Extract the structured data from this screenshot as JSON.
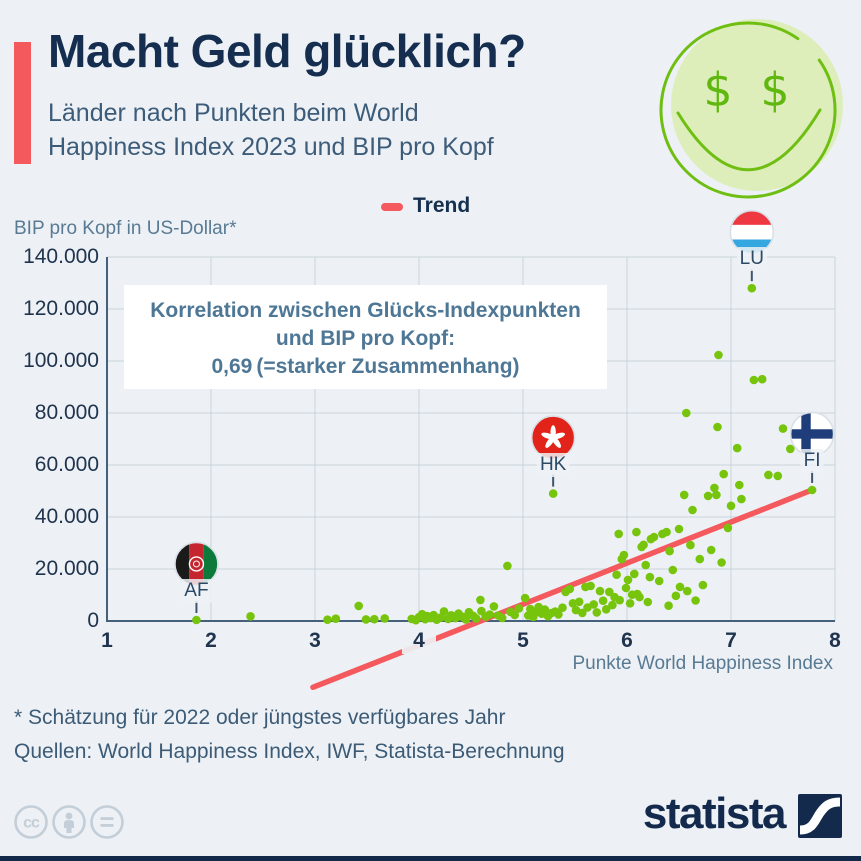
{
  "header": {
    "title": "Macht Geld glücklich?",
    "subtitle_line1": "Länder nach Punkten beim World",
    "subtitle_line2": "Happiness Index 2023 und BIP pro Kopf"
  },
  "legend": {
    "trend_label": "Trend"
  },
  "smiley": {
    "eye_symbol": "$"
  },
  "annotation": {
    "line1": "Korrelation zwischen Glücks-Indexpunkten",
    "line2": "und BIP pro Kopf:",
    "value": "0,69",
    "suffix": "(=starker Zusammenhang)"
  },
  "footer": {
    "note": "* Schätzung für 2022 oder jüngstes verfügbares Jahr",
    "sources": "Quellen: World Happiness Index, IWF, Statista-Berechnung"
  },
  "branding": {
    "logo_text": "statista",
    "cc_glyph": "cc"
  },
  "chart_data": {
    "type": "scatter",
    "title": "Macht Geld glücklich?",
    "xlabel": "Punkte World Happiness Index",
    "ylabel": "BIP pro Kopf in US-Dollar*",
    "xlim": [
      1,
      8
    ],
    "ylim": [
      0,
      140000
    ],
    "grid": true,
    "legend_position": "top-center",
    "x_ticks": [
      1,
      2,
      3,
      4,
      5,
      6,
      7,
      8
    ],
    "x_tick_labels": [
      "1",
      "2",
      "3",
      "4",
      "5",
      "6",
      "7",
      "8"
    ],
    "y_ticks": [
      0,
      20000,
      40000,
      60000,
      80000,
      100000,
      120000,
      140000
    ],
    "y_tick_labels": [
      "0",
      "20.000",
      "40.000",
      "60.000",
      "80.000",
      "100.000",
      "120.000",
      "140.000"
    ],
    "point_color": "#77c40d",
    "correlation": "0,69",
    "trend": {
      "color": "#f4595d",
      "x1": 2.98,
      "y1": -25500,
      "x2": 7.78,
      "y2": 50400
    },
    "callouts": [
      {
        "code": "AF",
        "x": 1.86,
        "y": 400,
        "flag": "afghanistan"
      },
      {
        "code": "HK",
        "x": 5.29,
        "y": 49000,
        "flag": "hong-kong"
      },
      {
        "code": "LU",
        "x": 7.2,
        "y": 128000,
        "flag": "luxembourg"
      },
      {
        "code": "FI",
        "x": 7.78,
        "y": 50400,
        "flag": "finland"
      }
    ],
    "points": [
      [
        1.86,
        400
      ],
      [
        2.38,
        1800
      ],
      [
        3.12,
        500
      ],
      [
        3.2,
        900
      ],
      [
        3.42,
        5800
      ],
      [
        3.49,
        600
      ],
      [
        3.57,
        700
      ],
      [
        3.67,
        1000
      ],
      [
        3.93,
        800
      ],
      [
        3.97,
        300
      ],
      [
        4.0,
        1500
      ],
      [
        4.03,
        2600
      ],
      [
        4.06,
        700
      ],
      [
        4.08,
        1900
      ],
      [
        4.11,
        1100
      ],
      [
        4.14,
        2300
      ],
      [
        4.17,
        500
      ],
      [
        4.21,
        1400
      ],
      [
        4.24,
        3700
      ],
      [
        4.28,
        800
      ],
      [
        4.31,
        2200
      ],
      [
        4.35,
        1100
      ],
      [
        4.38,
        2900
      ],
      [
        4.42,
        1600
      ],
      [
        4.45,
        600
      ],
      [
        4.48,
        3400
      ],
      [
        4.52,
        2000
      ],
      [
        4.55,
        1000
      ],
      [
        4.59,
        8100
      ],
      [
        4.6,
        3800
      ],
      [
        4.64,
        1700
      ],
      [
        4.68,
        2500
      ],
      [
        4.72,
        5600
      ],
      [
        4.76,
        2100
      ],
      [
        4.8,
        1200
      ],
      [
        4.85,
        21200
      ],
      [
        4.88,
        3500
      ],
      [
        4.92,
        2300
      ],
      [
        4.96,
        4800
      ],
      [
        5.02,
        8800
      ],
      [
        5.05,
        2100
      ],
      [
        5.07,
        4600
      ],
      [
        5.1,
        1600
      ],
      [
        5.12,
        3400
      ],
      [
        5.15,
        5400
      ],
      [
        5.18,
        2800
      ],
      [
        5.21,
        4400
      ],
      [
        5.24,
        1900
      ],
      [
        5.27,
        3000
      ],
      [
        5.29,
        49000
      ],
      [
        5.31,
        3600
      ],
      [
        5.34,
        2500
      ],
      [
        5.38,
        5100
      ],
      [
        5.41,
        11200
      ],
      [
        5.45,
        12300
      ],
      [
        5.48,
        6800
      ],
      [
        5.51,
        4200
      ],
      [
        5.54,
        7400
      ],
      [
        5.57,
        3100
      ],
      [
        5.6,
        13100
      ],
      [
        5.62,
        5200
      ],
      [
        5.65,
        13500
      ],
      [
        5.68,
        6400
      ],
      [
        5.71,
        3300
      ],
      [
        5.74,
        11500
      ],
      [
        5.77,
        7800
      ],
      [
        5.8,
        4500
      ],
      [
        5.83,
        11200
      ],
      [
        5.86,
        6100
      ],
      [
        5.88,
        9200
      ],
      [
        5.9,
        17800
      ],
      [
        5.92,
        33500
      ],
      [
        5.93,
        8000
      ],
      [
        5.95,
        23800
      ],
      [
        5.97,
        25400
      ],
      [
        5.99,
        12700
      ],
      [
        6.01,
        15800
      ],
      [
        6.03,
        6800
      ],
      [
        6.05,
        10100
      ],
      [
        6.07,
        18100
      ],
      [
        6.09,
        34200
      ],
      [
        6.1,
        10400
      ],
      [
        6.12,
        9200
      ],
      [
        6.14,
        28500
      ],
      [
        6.16,
        29300
      ],
      [
        6.18,
        21500
      ],
      [
        6.2,
        7300
      ],
      [
        6.22,
        16900
      ],
      [
        6.23,
        31500
      ],
      [
        6.26,
        32300
      ],
      [
        6.31,
        15400
      ],
      [
        6.34,
        33500
      ],
      [
        6.38,
        34200
      ],
      [
        6.4,
        5900
      ],
      [
        6.41,
        26900
      ],
      [
        6.44,
        19600
      ],
      [
        6.47,
        9700
      ],
      [
        6.5,
        35400
      ],
      [
        6.51,
        13100
      ],
      [
        6.55,
        48500
      ],
      [
        6.57,
        80000
      ],
      [
        6.58,
        11500
      ],
      [
        6.61,
        29200
      ],
      [
        6.63,
        42700
      ],
      [
        6.66,
        7900
      ],
      [
        6.7,
        23800
      ],
      [
        6.73,
        13800
      ],
      [
        6.78,
        48100
      ],
      [
        6.81,
        27300
      ],
      [
        6.84,
        51200
      ],
      [
        6.86,
        48500
      ],
      [
        6.87,
        74600
      ],
      [
        6.88,
        102300
      ],
      [
        6.91,
        22500
      ],
      [
        6.93,
        56500
      ],
      [
        6.97,
        35800
      ],
      [
        7.0,
        44300
      ],
      [
        7.06,
        66500
      ],
      [
        7.08,
        52300
      ],
      [
        7.1,
        46900
      ],
      [
        7.2,
        128000
      ],
      [
        7.22,
        92700
      ],
      [
        7.3,
        93000
      ],
      [
        7.36,
        56200
      ],
      [
        7.45,
        55800
      ],
      [
        7.5,
        74000
      ],
      [
        7.57,
        66200
      ],
      [
        7.78,
        50400
      ]
    ]
  }
}
